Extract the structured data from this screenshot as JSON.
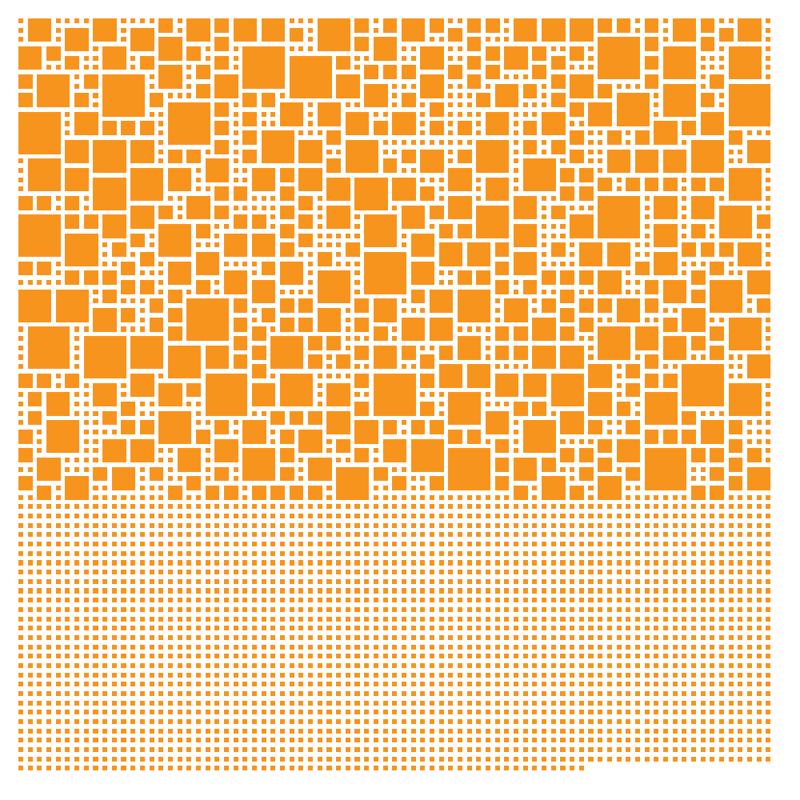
{
  "artwork": {
    "palette": {
      "fill": "#f7941d",
      "background": "#ffffff"
    },
    "grid": {
      "columns": 81,
      "rows": 81,
      "last_row_count": 61
    },
    "square_sizes_in_cells": [
      1,
      2,
      3,
      4,
      5
    ]
  }
}
